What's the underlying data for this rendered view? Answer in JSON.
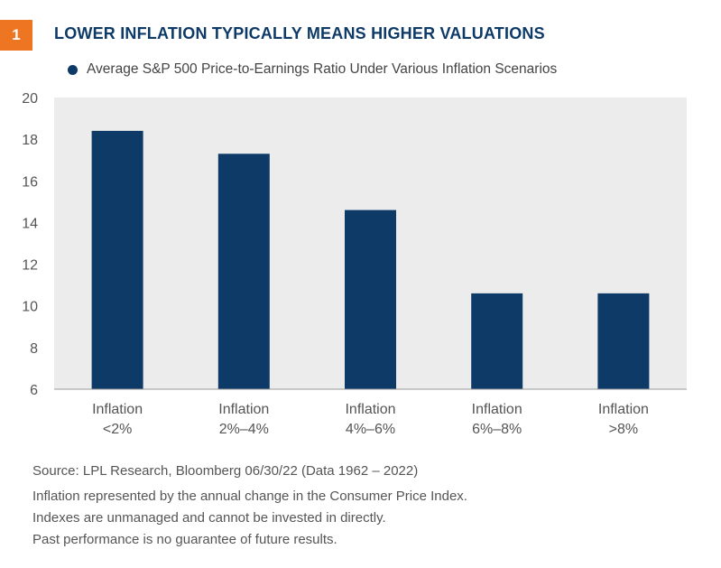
{
  "header": {
    "badge_number": "1",
    "title": "LOWER INFLATION TYPICALLY MEANS HIGHER VALUATIONS"
  },
  "colors": {
    "accent_orange": "#ee7622",
    "bar_navy": "#0e3a68",
    "plot_background": "#ececec"
  },
  "chart_data": {
    "type": "bar",
    "categories": [
      [
        "Inflation",
        "<2%"
      ],
      [
        "Inflation",
        "2%–4%"
      ],
      [
        "Inflation",
        "4%–6%"
      ],
      [
        "Inflation",
        "6%–8%"
      ],
      [
        "Inflation",
        ">8%"
      ]
    ],
    "series": [
      {
        "name": "Average S&P 500 Price-to-Earnings Ratio Under Various Inflation Scenarios",
        "values": [
          18.4,
          17.3,
          14.6,
          10.6,
          10.6
        ]
      }
    ],
    "yticks": [
      6,
      8,
      10,
      12,
      14,
      16,
      18,
      20
    ],
    "ylim": [
      6,
      20
    ],
    "legend_position": "top-left",
    "grid": false
  },
  "footnotes": {
    "source": "Source: LPL Research, Bloomberg  06/30/22 (Data 1962 – 2022)",
    "lines": [
      "Inflation represented by the annual change in the Consumer Price Index.",
      "Indexes are unmanaged and cannot be invested in directly.",
      "Past performance is no guarantee of future results."
    ]
  }
}
